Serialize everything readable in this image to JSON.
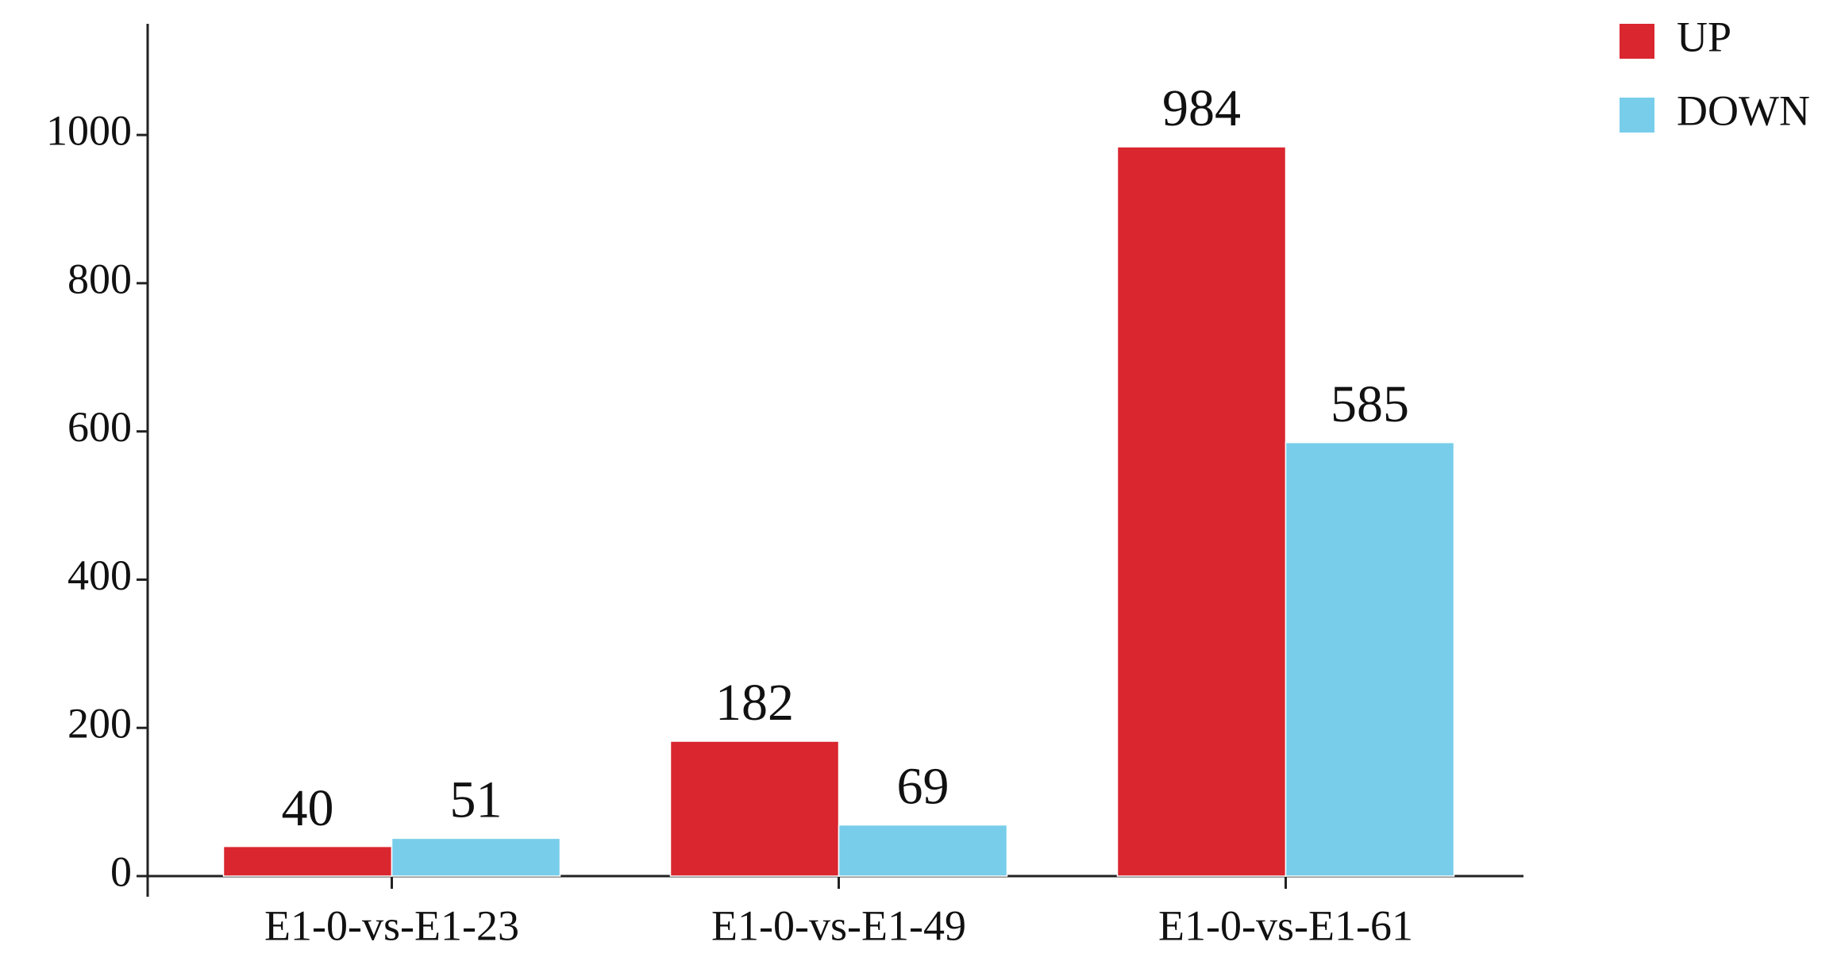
{
  "chart_data": {
    "type": "bar",
    "categories": [
      "E1-0-vs-E1-23",
      "E1-0-vs-E1-49",
      "E1-0-vs-E1-61"
    ],
    "series": [
      {
        "name": "UP",
        "color": "#d9262f",
        "values": [
          40,
          182,
          984
        ]
      },
      {
        "name": "DOWN",
        "color": "#78cdea",
        "values": [
          51,
          69,
          585
        ]
      }
    ],
    "ylim": [
      0,
      1150
    ],
    "yticks": [
      0,
      200,
      400,
      600,
      800,
      1000
    ],
    "legend": "top-right",
    "grid": false
  }
}
